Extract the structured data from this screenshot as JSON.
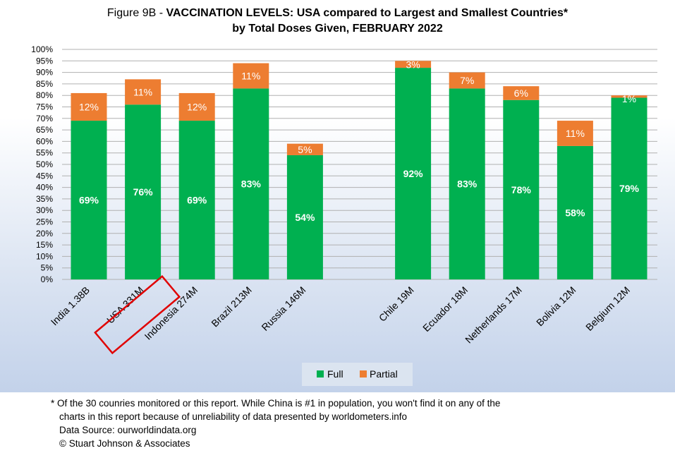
{
  "title": {
    "prefix": "Figure 9B - ",
    "bold_line1": "VACCINATION LEVELS:  USA compared to Largest and Smallest Countries*",
    "line2": "by Total Doses Given, FEBRUARY 2022"
  },
  "footnote": {
    "line1": "* Of the 30 counries monitored or this report. While China is #1 in population, you won't find it on any of the",
    "line2": "charts in this report because of unreliability of data presented by worldometers.info",
    "line3": "Data Source:  ourworldindata.org",
    "line4": "© Stuart Johnson & Associates"
  },
  "colors": {
    "full": "#00b050",
    "partial": "#ed7d31",
    "highlight": "#e00000",
    "grid": "#b0b0b0"
  },
  "chart_data": {
    "type": "bar",
    "stacked": true,
    "categories": [
      "India 1.38B",
      "USA 331M",
      "Indonesia 274M",
      "Brazil 213M",
      "Russia 146M",
      "Chile 19M",
      "Ecuador 18M",
      "Netherlands 17M",
      "Bolivia 12M",
      "Belgium 12M"
    ],
    "series": [
      {
        "name": "Full",
        "values": [
          69,
          76,
          69,
          83,
          54,
          92,
          83,
          78,
          58,
          79
        ],
        "labels": [
          "69%",
          "76%",
          "69%",
          "83%",
          "54%",
          "92%",
          "83%",
          "78%",
          "58%",
          "79%"
        ]
      },
      {
        "name": "Partial",
        "values": [
          12,
          11,
          12,
          11,
          5,
          3,
          7,
          6,
          11,
          1
        ],
        "labels": [
          "12%",
          "11%",
          "12%",
          "11%",
          "5%",
          "3%",
          "7%",
          "6%",
          "11%",
          "1%"
        ]
      }
    ],
    "ylim": [
      0,
      100
    ],
    "yticks": [
      "0%",
      "5%",
      "10%",
      "15%",
      "20%",
      "25%",
      "30%",
      "35%",
      "40%",
      "45%",
      "50%",
      "55%",
      "60%",
      "65%",
      "70%",
      "75%",
      "80%",
      "85%",
      "90%",
      "95%",
      "100%"
    ],
    "highlighted_category": "USA 331M",
    "legend_position": "bottom",
    "grid": true
  }
}
